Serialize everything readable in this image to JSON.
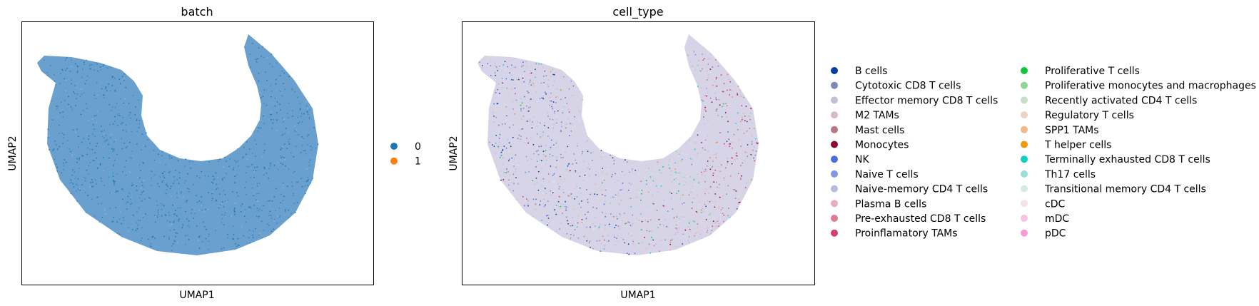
{
  "chart_data": [
    {
      "type": "scatter",
      "title": "batch",
      "xlabel": "UMAP1",
      "ylabel": "UMAP2",
      "grid": false,
      "ticks": false,
      "legend_position": "right",
      "categories": [
        {
          "name": "0",
          "color": "#1f77b4"
        },
        {
          "name": "1",
          "color": "#ff7f0e"
        }
      ]
    },
    {
      "type": "scatter",
      "title": "cell_type",
      "xlabel": "UMAP1",
      "ylabel": "UMAP2",
      "grid": false,
      "ticks": false,
      "legend_position": "right",
      "categories": [
        {
          "name": "B cells",
          "color": "#023fa5"
        },
        {
          "name": "Cytotoxic CD8 T cells",
          "color": "#7d87b9"
        },
        {
          "name": "Effector memory CD8 T cells",
          "color": "#bec1d4"
        },
        {
          "name": "M2 TAMs",
          "color": "#d6bcc0"
        },
        {
          "name": "Mast cells",
          "color": "#bb7784"
        },
        {
          "name": "Monocytes",
          "color": "#8e063b"
        },
        {
          "name": "NK",
          "color": "#4a6fe3"
        },
        {
          "name": "Naive T cells",
          "color": "#8595e1"
        },
        {
          "name": "Naive-memory CD4 T cells",
          "color": "#b5bbe3"
        },
        {
          "name": "Plasma B cells",
          "color": "#e6afb9"
        },
        {
          "name": "Pre-exhausted CD8 T cells",
          "color": "#e07b91"
        },
        {
          "name": "Proinflamatory TAMs",
          "color": "#d33f6a"
        },
        {
          "name": "Proliferative T cells",
          "color": "#11c638"
        },
        {
          "name": "Proliferative monocytes and macrophages",
          "color": "#8dd593"
        },
        {
          "name": "Recently activated CD4 T cells",
          "color": "#c6dec7"
        },
        {
          "name": "Regulatory T cells",
          "color": "#ead3c6"
        },
        {
          "name": "SPP1 TAMs",
          "color": "#f0b98d"
        },
        {
          "name": "T helper cells",
          "color": "#ef9708"
        },
        {
          "name": "Terminally exhausted CD8 T cells",
          "color": "#0fcfc0"
        },
        {
          "name": "Th17 cells",
          "color": "#9cded6"
        },
        {
          "name": "Transitional memory CD4 T cells",
          "color": "#d5eae7"
        },
        {
          "name": "cDC",
          "color": "#f3e1eb"
        },
        {
          "name": "mDC",
          "color": "#f6c4e1"
        },
        {
          "name": "pDC",
          "color": "#f79cd4"
        }
      ]
    }
  ]
}
